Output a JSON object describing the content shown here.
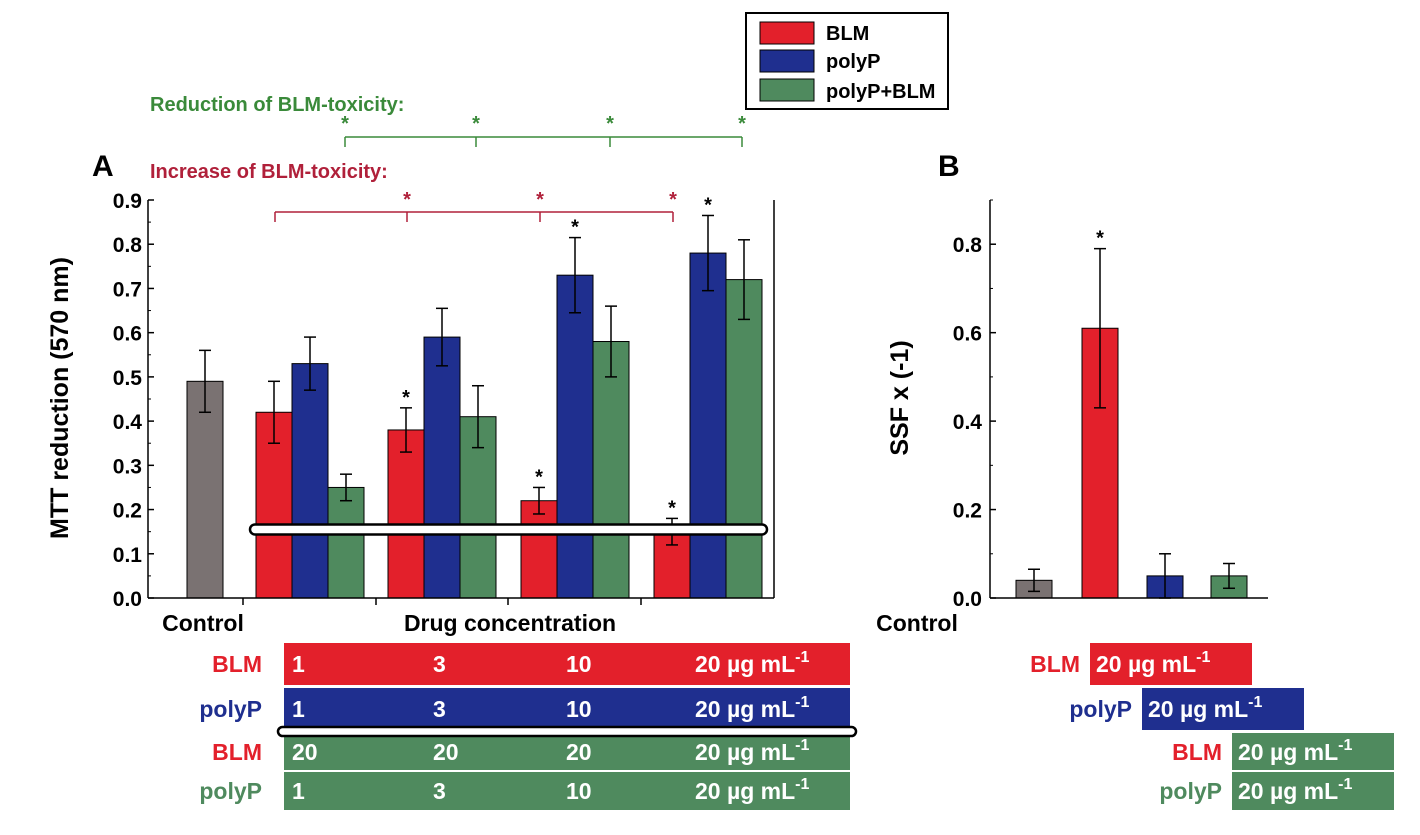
{
  "colors": {
    "blm": "#e3202b",
    "polyp": "#1f2f8f",
    "combo": "#4f8a5e",
    "control": "#7a7272",
    "reduction": "#3a8a3a",
    "increase": "#b0203a",
    "axis": "#000000"
  },
  "legend": {
    "items": [
      {
        "label": "BLM",
        "color": "#e3202b"
      },
      {
        "label": "polyP",
        "color": "#1f2f8f"
      },
      {
        "label": "polyP+BLM",
        "color": "#4f8a5e"
      }
    ]
  },
  "annotations": {
    "reduction_label": "Reduction of BLM-toxicity:",
    "increase_label": "Increase of BLM-toxicity:",
    "star": "*"
  },
  "chart_data": [
    {
      "panel": "A",
      "type": "bar",
      "ylabel": "MTT reduction (570 nm)",
      "xlabel": "Drug concentration",
      "control_label": "Control",
      "ylim": [
        0,
        0.9
      ],
      "yticks": [
        "0.0",
        "0.1",
        "0.2",
        "0.3",
        "0.4",
        "0.5",
        "0.6",
        "0.7",
        "0.8",
        "0.9"
      ],
      "control": {
        "value": 0.49,
        "error": 0.07
      },
      "groups": [
        "1",
        "3",
        "10",
        "20"
      ],
      "series": [
        {
          "name": "BLM",
          "values": [
            0.42,
            0.38,
            0.22,
            0.15
          ],
          "errors": [
            0.07,
            0.05,
            0.03,
            0.03
          ],
          "sig": [
            false,
            true,
            true,
            true
          ]
        },
        {
          "name": "polyP",
          "values": [
            0.53,
            0.59,
            0.73,
            0.78
          ],
          "errors": [
            0.06,
            0.065,
            0.085,
            0.085
          ],
          "sig": [
            false,
            false,
            true,
            true
          ]
        },
        {
          "name": "polyP+BLM",
          "values": [
            0.25,
            0.41,
            0.58,
            0.72
          ],
          "errors": [
            0.03,
            0.07,
            0.08,
            0.09
          ],
          "sig": [
            false,
            false,
            false,
            false
          ]
        }
      ],
      "threshold_line": 0.155,
      "table": {
        "rows": [
          {
            "label": "BLM",
            "cells": [
              "1",
              "3",
              "10",
              "20 µg mL"
            ],
            "unit_sup": "-1"
          },
          {
            "label": "polyP",
            "cells": [
              "1",
              "3",
              "10",
              "20 µg mL"
            ],
            "unit_sup": "-1"
          },
          {
            "label": "BLM",
            "cells": [
              "20",
              "20",
              "20",
              "20 µg mL"
            ],
            "unit_sup": "-1"
          },
          {
            "label": "polyP",
            "cells": [
              "1",
              "3",
              "10",
              "20 µg mL"
            ],
            "unit_sup": "-1"
          }
        ]
      }
    },
    {
      "panel": "B",
      "type": "bar",
      "ylabel": "SSF x (-1)",
      "control_label": "Control",
      "ylim": [
        0,
        0.9
      ],
      "yticks": [
        "0.0",
        "0.2",
        "0.4",
        "0.6",
        "0.8"
      ],
      "bars": [
        {
          "name": "Control",
          "value": 0.04,
          "error": 0.025,
          "sig": false
        },
        {
          "name": "BLM",
          "value": 0.61,
          "error": 0.18,
          "sig": true
        },
        {
          "name": "polyP",
          "value": 0.05,
          "error": 0.05,
          "sig": false
        },
        {
          "name": "polyP+BLM",
          "value": 0.05,
          "error": 0.028,
          "sig": false
        }
      ],
      "table": {
        "rows": [
          {
            "label": "BLM",
            "cell": "20 µg mL",
            "unit_sup": "-1"
          },
          {
            "label": "polyP",
            "cell": "20 µg mL",
            "unit_sup": "-1"
          },
          {
            "label": "BLM",
            "cell": "20 µg mL",
            "unit_sup": "-1"
          },
          {
            "label": "polyP",
            "cell": "20 µg mL",
            "unit_sup": "-1"
          }
        ]
      }
    }
  ]
}
